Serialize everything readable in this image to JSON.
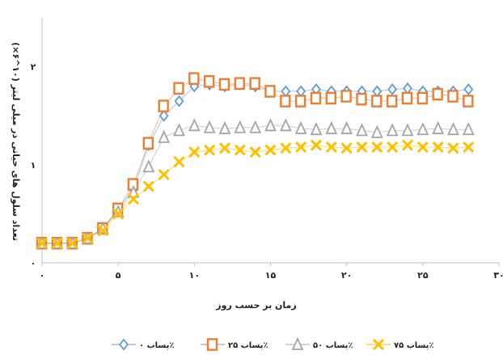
{
  "chart_data": {
    "type": "line",
    "xlabel": "زمان بر حسب روز",
    "ylabel": "تعداد سلول های حیاتی در میلی لیتر (۱۰^۶×)",
    "xlim": [
      0,
      30
    ],
    "ylim": [
      0,
      2.5
    ],
    "x_ticks": [
      "۰",
      "۵",
      "۱۰",
      "۱۵",
      "۲۰",
      "۲۵",
      "۳۰"
    ],
    "y_ticks": [
      "۰",
      "۱",
      "۲"
    ],
    "x": [
      0,
      1,
      2,
      3,
      4,
      5,
      6,
      7,
      8,
      9,
      10,
      11,
      12,
      13,
      14,
      15,
      16,
      17,
      18,
      19,
      20,
      21,
      22,
      23,
      24,
      25,
      26,
      27,
      28
    ],
    "legend_position": "bottom",
    "series": [
      {
        "name": "پساب ۰٪",
        "color": "#5B9BD5",
        "marker": "diamond",
        "values": [
          0.2,
          0.2,
          0.2,
          0.25,
          0.35,
          0.55,
          0.75,
          1.2,
          1.5,
          1.65,
          1.8,
          1.82,
          1.8,
          1.82,
          1.8,
          1.75,
          1.75,
          1.75,
          1.77,
          1.75,
          1.75,
          1.75,
          1.75,
          1.77,
          1.78,
          1.75,
          1.75,
          1.75,
          1.77
        ]
      },
      {
        "name": "پساب ۲۵٪",
        "color": "#ED7D31",
        "marker": "square",
        "values": [
          0.2,
          0.2,
          0.2,
          0.25,
          0.35,
          0.55,
          0.8,
          1.22,
          1.6,
          1.78,
          1.88,
          1.85,
          1.82,
          1.83,
          1.83,
          1.75,
          1.65,
          1.65,
          1.68,
          1.68,
          1.7,
          1.67,
          1.65,
          1.65,
          1.68,
          1.68,
          1.72,
          1.7,
          1.65
        ]
      },
      {
        "name": "پساب ۵۰٪",
        "color": "#A5A5A5",
        "marker": "triangle",
        "values": [
          0.2,
          0.2,
          0.2,
          0.25,
          0.35,
          0.52,
          0.72,
          0.98,
          1.28,
          1.35,
          1.4,
          1.38,
          1.37,
          1.38,
          1.38,
          1.4,
          1.4,
          1.37,
          1.36,
          1.37,
          1.37,
          1.35,
          1.33,
          1.35,
          1.35,
          1.36,
          1.37,
          1.36,
          1.36
        ]
      },
      {
        "name": "پساب ۷۵٪",
        "color": "#FFC000",
        "marker": "x",
        "values": [
          0.2,
          0.2,
          0.2,
          0.25,
          0.33,
          0.5,
          0.65,
          0.78,
          0.9,
          1.03,
          1.13,
          1.15,
          1.17,
          1.15,
          1.13,
          1.15,
          1.17,
          1.18,
          1.2,
          1.18,
          1.17,
          1.18,
          1.18,
          1.18,
          1.2,
          1.18,
          1.18,
          1.17,
          1.18
        ]
      }
    ]
  }
}
